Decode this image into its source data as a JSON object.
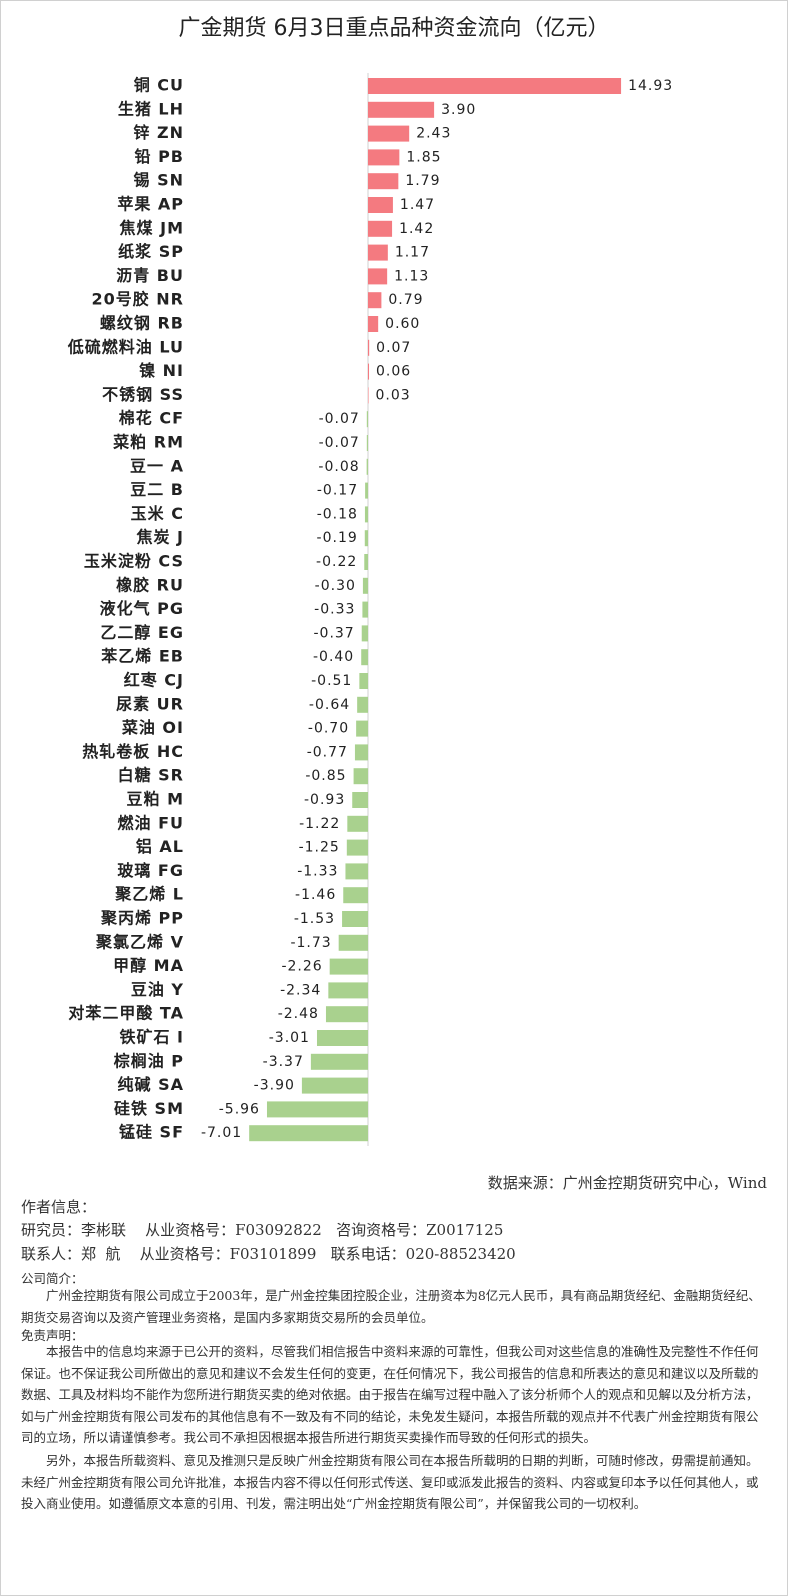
{
  "chart_data": {
    "type": "bar",
    "orientation": "horizontal",
    "title": "广金期货 6月3日重点品种资金流向（亿元）",
    "positive_color": "#f47a80",
    "negative_color": "#a9d18e",
    "categories": [
      "铜 CU",
      "生猪 LH",
      "锌 ZN",
      "铅 PB",
      "锡 SN",
      "苹果 AP",
      "焦煤 JM",
      "纸浆 SP",
      "沥青 BU",
      "20号胶 NR",
      "螺纹钢 RB",
      "低硫燃料油 LU",
      "镍 NI",
      "不锈钢 SS",
      "棉花 CF",
      "菜粕 RM",
      "豆一 A",
      "豆二 B",
      "玉米 C",
      "焦炭 J",
      "玉米淀粉 CS",
      "橡胶 RU",
      "液化气 PG",
      "乙二醇 EG",
      "苯乙烯 EB",
      "红枣 CJ",
      "尿素 UR",
      "菜油 OI",
      "热轧卷板 HC",
      "白糖 SR",
      "豆粕 M",
      "燃油 FU",
      "铝 AL",
      "玻璃 FG",
      "聚乙烯 L",
      "聚丙烯 PP",
      "聚氯乙烯 V",
      "甲醇 MA",
      "豆油 Y",
      "对苯二甲酸 TA",
      "铁矿石 I",
      "棕榈油 P",
      "纯碱 SA",
      "硅铁 SM",
      "锰硅 SF"
    ],
    "values": [
      14.93,
      3.9,
      2.43,
      1.85,
      1.79,
      1.47,
      1.42,
      1.17,
      1.13,
      0.79,
      0.6,
      0.07,
      0.06,
      0.03,
      -0.07,
      -0.07,
      -0.08,
      -0.17,
      -0.18,
      -0.19,
      -0.22,
      -0.3,
      -0.33,
      -0.37,
      -0.4,
      -0.51,
      -0.64,
      -0.7,
      -0.77,
      -0.85,
      -0.93,
      -1.22,
      -1.25,
      -1.33,
      -1.46,
      -1.53,
      -1.73,
      -2.26,
      -2.34,
      -2.48,
      -3.01,
      -3.37,
      -3.9,
      -5.96,
      -7.01
    ],
    "value_labels": [
      "14.93",
      "3.90",
      "2.43",
      "1.85",
      "1.79",
      "1.47",
      "1.42",
      "1.17",
      "1.13",
      "0.79",
      "0.60",
      "0.07",
      "0.06",
      "0.03",
      "-0.07",
      "-0.07",
      "-0.08",
      "-0.17",
      "-0.18",
      "-0.19",
      "-0.22",
      "-0.30",
      "-0.33",
      "-0.37",
      "-0.40",
      "-0.51",
      "-0.64",
      "-0.70",
      "-0.77",
      "-0.85",
      "-0.93",
      "-1.22",
      "-1.25",
      "-1.33",
      "-1.46",
      "-1.53",
      "-1.73",
      "-2.26",
      "-2.34",
      "-2.48",
      "-3.01",
      "-3.37",
      "-3.90",
      "-5.96",
      "-7.01"
    ]
  },
  "document": {
    "source": "数据来源：广州金控期货研究中心，Wind",
    "author_heading": "作者信息：",
    "researcher": "研究员：李彬联    从业资格号：F03092822   咨询资格号：Z0017125",
    "contact": "联系人：郑  航    从业资格号：F03101899   联系电话：020-88523420",
    "intro_heading": "公司简介：",
    "intro": "广州金控期货有限公司成立于2003年，是广州金控集团控股企业，注册资本为8亿元人民币，具有商品期货经纪、金融期货经纪、期货交易咨询以及资产管理业务资格，是国内多家期货交易所的会员单位。",
    "disclaimer_heading": "免责声明：",
    "disclaimer_1": "本报告中的信息均来源于已公开的资料，尽管我们相信报告中资料来源的可靠性，但我公司对这些信息的准确性及完整性不作任何保证。也不保证我公司所做出的意见和建议不会发生任何的变更，在任何情况下，我公司报告的信息和所表达的意见和建议以及所载的数据、工具及材料均不能作为您所进行期货买卖的绝对依据。由于报告在编写过程中融入了该分析师个人的观点和见解以及分析方法，如与广州金控期货有限公司发布的其他信息有不一致及有不同的结论，未免发生疑问，本报告所载的观点并不代表广州金控期货有限公司的立场，所以请谨慎参考。我公司不承担因根据本报告所进行期货买卖操作而导致的任何形式的损失。",
    "disclaimer_2": "另外，本报告所载资料、意见及推测只是反映广州金控期货有限公司在本报告所载明的日期的判断，可随时修改，毋需提前通知。未经广州金控期货有限公司允许批准，本报告内容不得以任何形式传送、复印或派发此报告的资料、内容或复印本予以任何其他人，或投入商业使用。如遵循原文本意的引用、刊发，需注明出处“广州金控期货有限公司”，并保留我公司的一切权利。"
  }
}
